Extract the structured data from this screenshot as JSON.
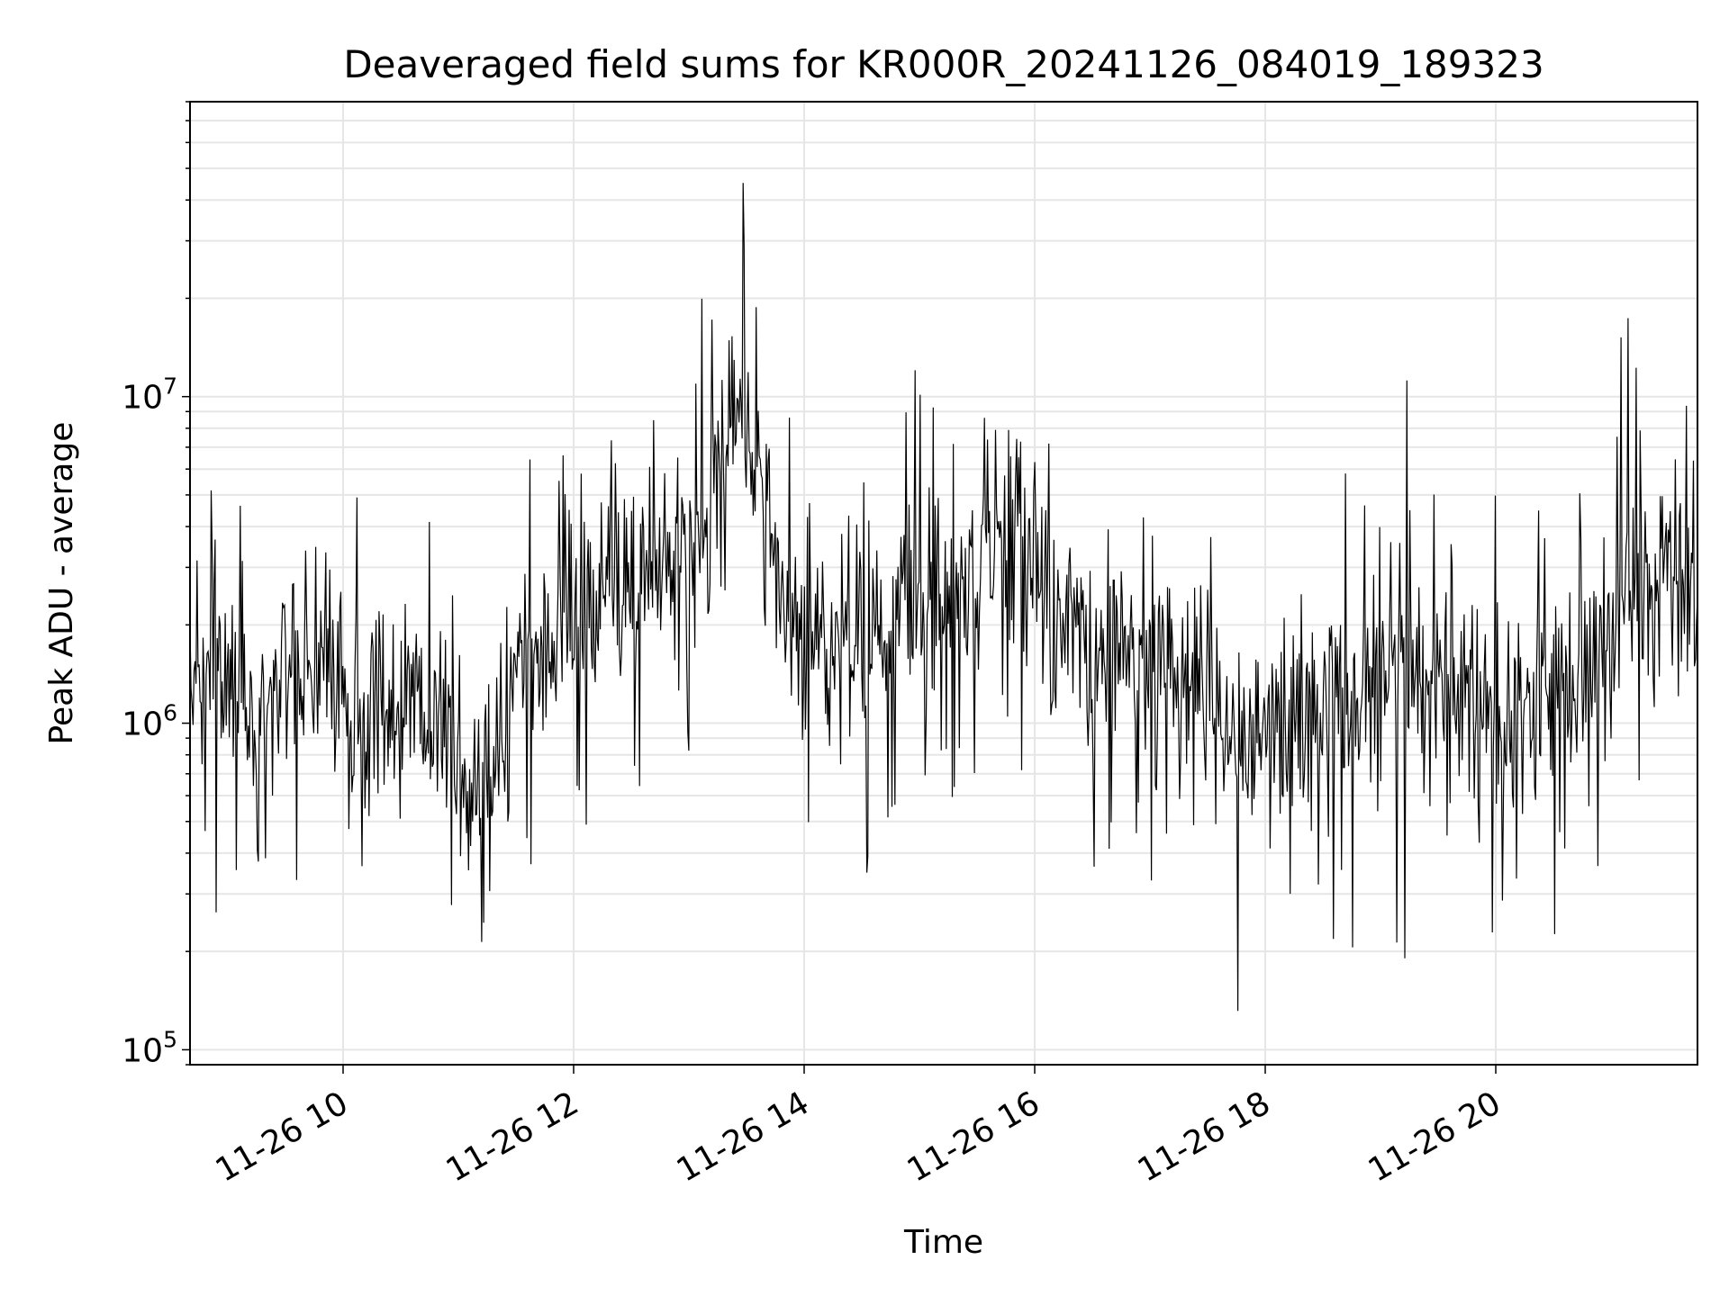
{
  "chart_data": {
    "type": "line",
    "title": "Deaveraged field sums for KR000R_20241126_084019_189323",
    "xlabel": "Time",
    "ylabel": "Peak ADU - average",
    "y_scale": "log",
    "xlim": [
      "2024-11-26T08:40:19",
      "2024-11-26T21:45:00"
    ],
    "ylim": [
      90000,
      80000000
    ],
    "x_tick_labels": [
      "11-26 10",
      "11-26 12",
      "11-26 14",
      "11-26 16",
      "11-26 18",
      "11-26 20"
    ],
    "y_tick_labels": [
      {
        "base": "10",
        "exp": "5"
      },
      {
        "base": "10",
        "exp": "6"
      },
      {
        "base": "10",
        "exp": "7"
      }
    ],
    "grid": true,
    "line_color": "#000000",
    "series": [
      {
        "x": [
          "2024-11-26T08:40",
          "2024-11-26T09:00",
          "2024-11-26T09:20",
          "2024-11-26T09:40",
          "2024-11-26T10:00",
          "2024-11-26T10:20",
          "2024-11-26T10:40",
          "2024-11-26T11:00",
          "2024-11-26T11:10",
          "2024-11-26T11:20",
          "2024-11-26T11:40",
          "2024-11-26T12:00",
          "2024-11-26T12:20",
          "2024-11-26T12:40",
          "2024-11-26T13:00",
          "2024-11-26T13:15",
          "2024-11-26T13:25",
          "2024-11-26T13:35",
          "2024-11-26T13:50",
          "2024-11-26T14:10",
          "2024-11-26T14:30",
          "2024-11-26T14:50",
          "2024-11-26T15:10",
          "2024-11-26T15:30",
          "2024-11-26T15:50",
          "2024-11-26T16:10",
          "2024-11-26T16:30",
          "2024-11-26T16:50",
          "2024-11-26T17:10",
          "2024-11-26T17:30",
          "2024-11-26T17:50",
          "2024-11-26T18:10",
          "2024-11-26T18:30",
          "2024-11-26T18:50",
          "2024-11-26T19:10",
          "2024-11-26T19:30",
          "2024-11-26T19:50",
          "2024-11-26T20:10",
          "2024-11-26T20:30",
          "2024-11-26T20:50",
          "2024-11-26T21:10",
          "2024-11-26T21:30",
          "2024-11-26T21:45"
        ],
        "values": [
          1500000,
          1300000,
          1100000,
          1600000,
          1200000,
          1000000,
          1200000,
          800000,
          600000,
          900000,
          1800000,
          1900000,
          2500000,
          3000000,
          2600000,
          6000000,
          9000000,
          6000000,
          2200000,
          1800000,
          1800000,
          2200000,
          2500000,
          3000000,
          5000000,
          2000000,
          1800000,
          1500000,
          1600000,
          1300000,
          900000,
          1100000,
          1200000,
          1300000,
          1600000,
          1400000,
          1100000,
          1000000,
          1200000,
          1800000,
          2800000,
          2600000,
          2300000
        ]
      }
    ],
    "noise_seed": 20241126
  }
}
